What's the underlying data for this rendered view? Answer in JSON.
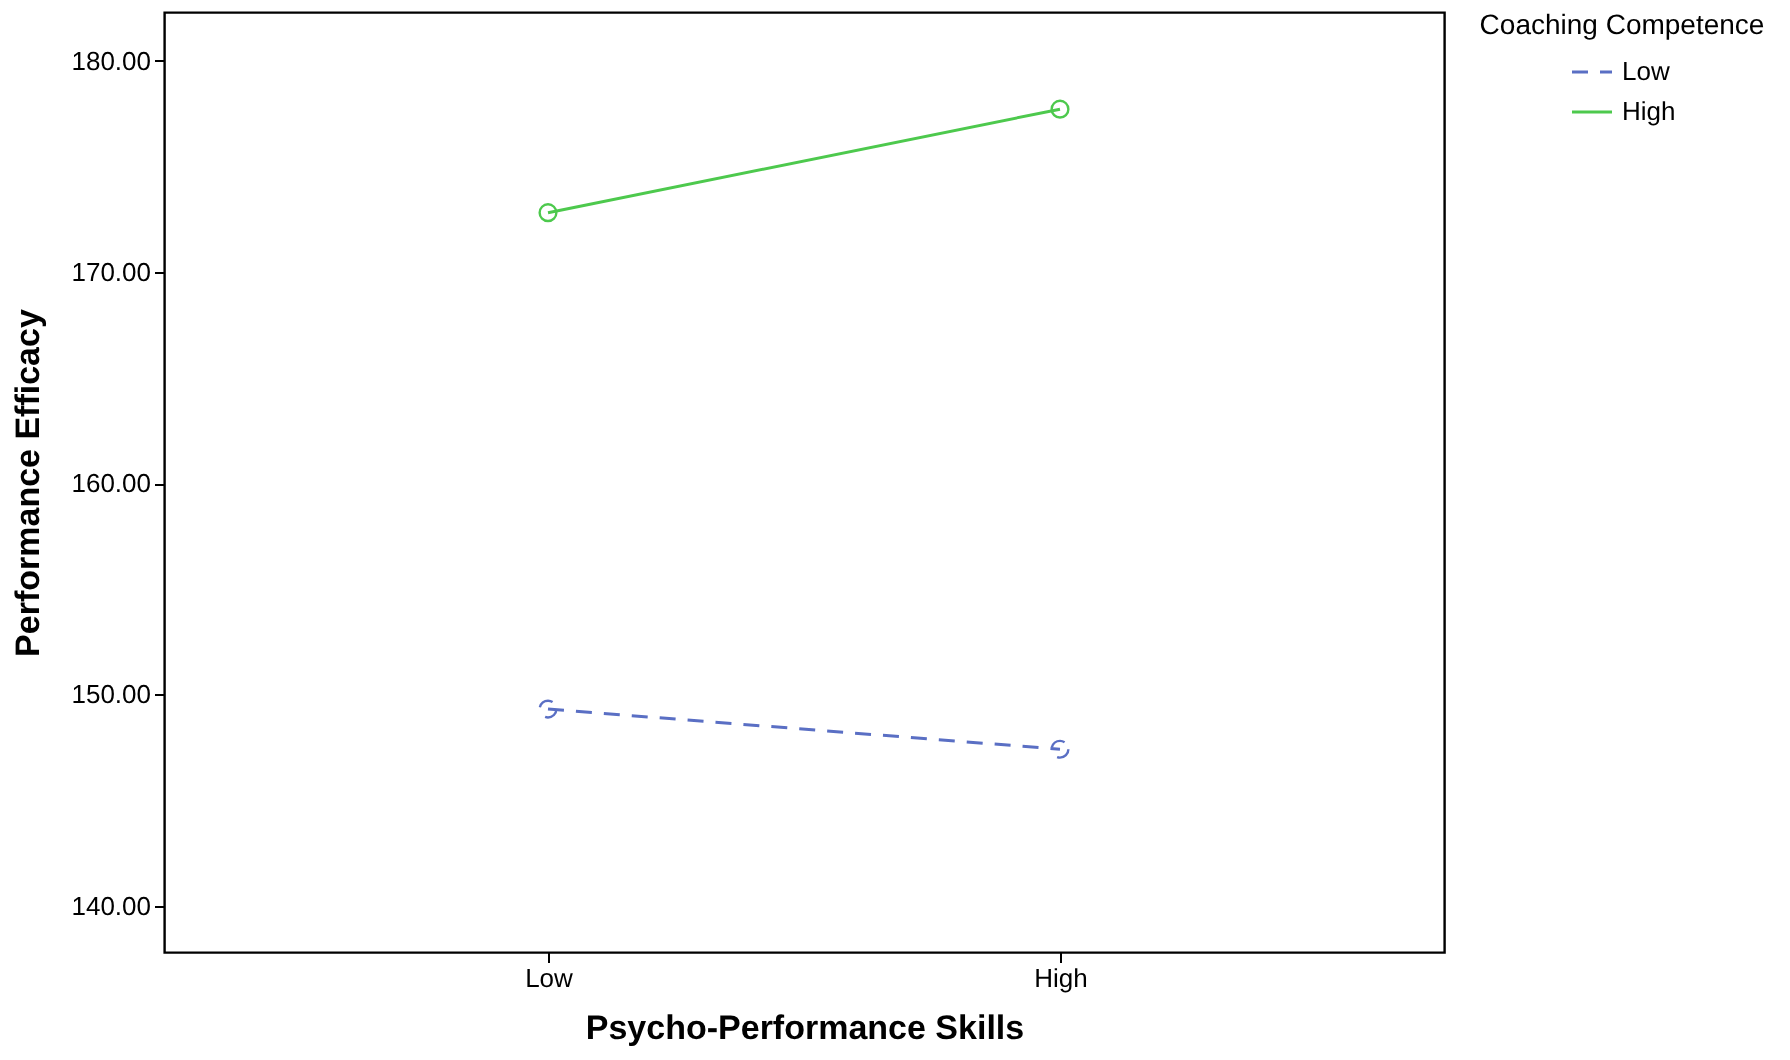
{
  "chart_data": {
    "type": "line",
    "xlabel": "Psycho-Performance Skills",
    "ylabel": "Performance Efficacy",
    "legend_title": "Coaching Competence",
    "categories": [
      "Low",
      "High"
    ],
    "series": [
      {
        "name": "Low",
        "color": "#5a6fc4",
        "line_style": "dashed",
        "values": [
          149.3,
          147.4
        ]
      },
      {
        "name": "High",
        "color": "#4dc94d",
        "line_style": "solid",
        "values": [
          172.8,
          177.7
        ]
      }
    ],
    "ylim": [
      137.8,
      182.3
    ],
    "yticks": [
      {
        "value": 140,
        "label": "140.00"
      },
      {
        "value": 150,
        "label": "150.00"
      },
      {
        "value": 160,
        "label": "160.00"
      },
      {
        "value": 170,
        "label": "170.00"
      },
      {
        "value": 180,
        "label": "180.00"
      }
    ],
    "grid": false,
    "legend": "top right",
    "marker": "circle"
  }
}
